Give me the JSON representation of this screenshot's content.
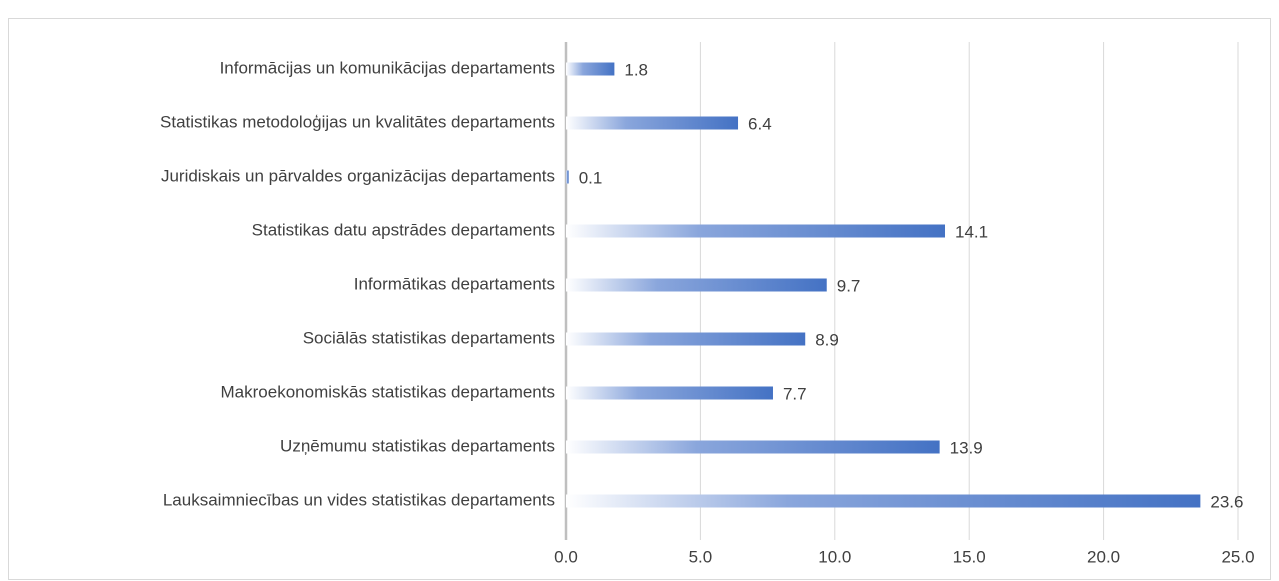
{
  "chart_data": {
    "type": "bar",
    "orientation": "horizontal",
    "categories": [
      "Informācijas un komunikācijas departaments",
      "Statistikas metodoloģijas un kvalitātes departaments",
      "Juridiskais un pārvaldes organizācijas departaments",
      "Statistikas datu apstrādes departaments",
      "Informātikas departaments",
      "Sociālās statistikas departaments",
      "Makroekonomiskās statistikas departaments",
      "Uzņēmumu statistikas departaments",
      "Lauksaimniecības un vides statistikas departaments"
    ],
    "values": [
      1.8,
      6.4,
      0.1,
      14.1,
      9.7,
      8.9,
      7.7,
      13.9,
      23.6
    ],
    "color": "#4472c4",
    "xlim": [
      0,
      25
    ],
    "xticks": [
      {
        "value": 0,
        "label": "0.0"
      },
      {
        "value": 5,
        "label": "5.0"
      },
      {
        "value": 10,
        "label": "10.0"
      },
      {
        "value": 15,
        "label": "15.0"
      },
      {
        "value": 20,
        "label": "20.0"
      },
      {
        "value": 25,
        "label": "25.0"
      }
    ],
    "grid": true
  }
}
